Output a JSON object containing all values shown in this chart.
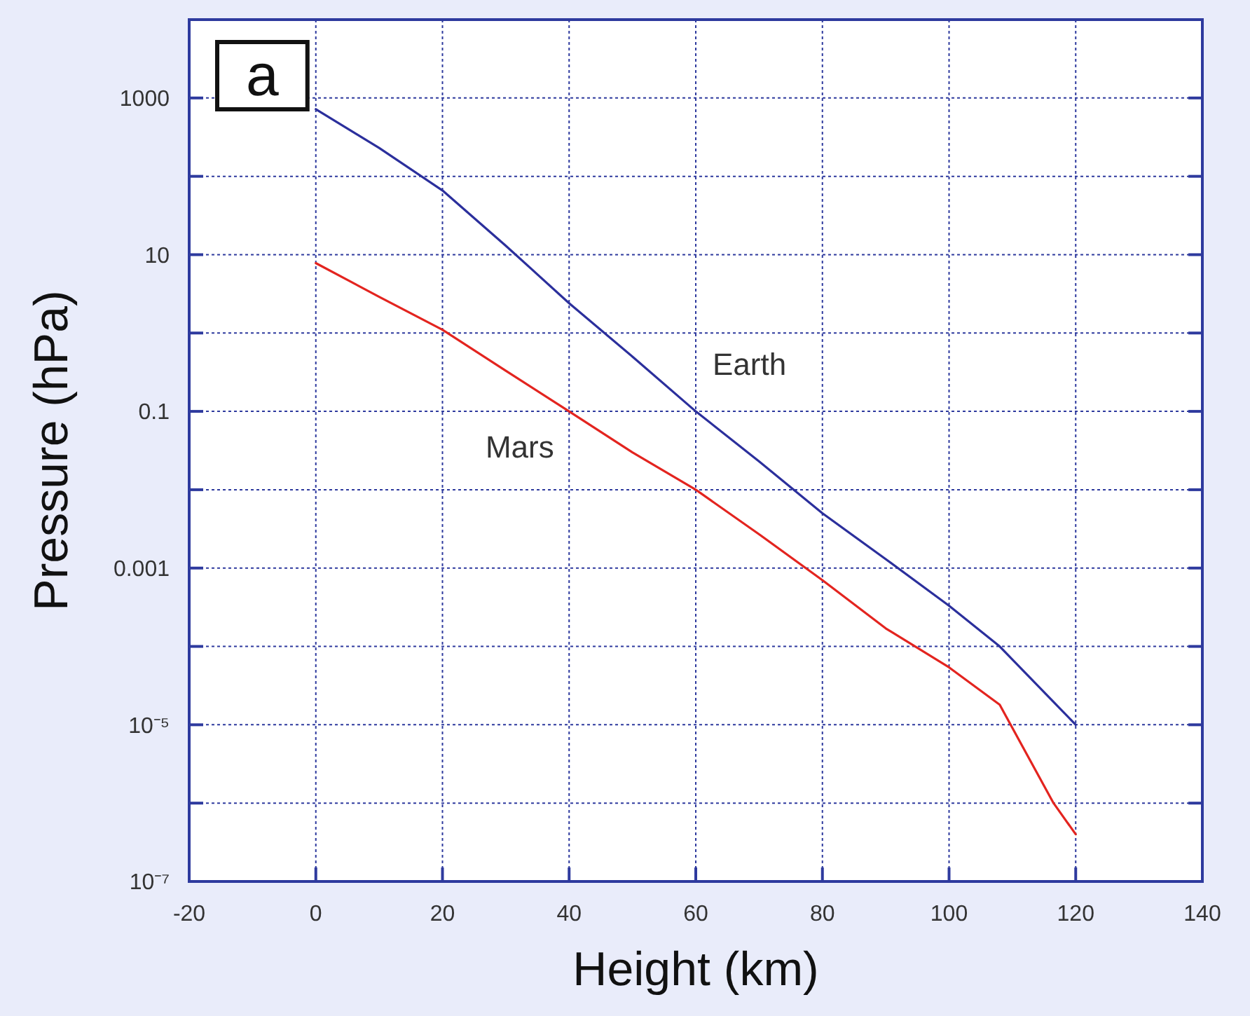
{
  "chart_data": {
    "type": "line",
    "xlabel": "Height (km)",
    "ylabel": "Pressure (hPa)",
    "log": "y",
    "grid": true,
    "xlim": [
      -20,
      140
    ],
    "xticks": [
      -20,
      0,
      20,
      40,
      60,
      80,
      100,
      120,
      140
    ],
    "ylim": [
      1e-07,
      10000
    ],
    "yticks": [
      {
        "value": 1e-07,
        "label": "10⁻⁷"
      },
      {
        "value": 1e-06,
        "label": null
      },
      {
        "value": 1e-05,
        "label": "10⁻⁵"
      },
      {
        "value": 0.0001,
        "label": null
      },
      0.001,
      {
        "value": 0.01,
        "label": null
      },
      0.1,
      {
        "value": 1,
        "label": null
      },
      10,
      {
        "value": 100,
        "label": null
      },
      1000
    ],
    "series": [
      {
        "name": "Earth",
        "color": "#2b2f9c",
        "x": [
          0,
          10,
          20,
          30,
          40,
          50,
          60,
          70,
          80,
          90,
          100,
          108,
          120
        ],
        "values": [
          720,
          230,
          66,
          13,
          2.4,
          0.5,
          0.1,
          0.023,
          0.005,
          0.0013,
          0.00033,
          0.0001,
          1e-05
        ]
      },
      {
        "name": "Mars",
        "color": "#e3241f",
        "x": [
          0,
          10,
          20,
          30,
          40,
          50,
          60,
          70,
          80,
          90,
          100,
          108,
          116.5,
          120
        ],
        "values": [
          7.8,
          2.9,
          1.1,
          0.33,
          0.1,
          0.03,
          0.01,
          0.0027,
          0.0007,
          0.00017,
          5.4e-05,
          1.8e-05,
          1e-06,
          4e-07
        ]
      }
    ],
    "annotations": [
      "a"
    ]
  }
}
